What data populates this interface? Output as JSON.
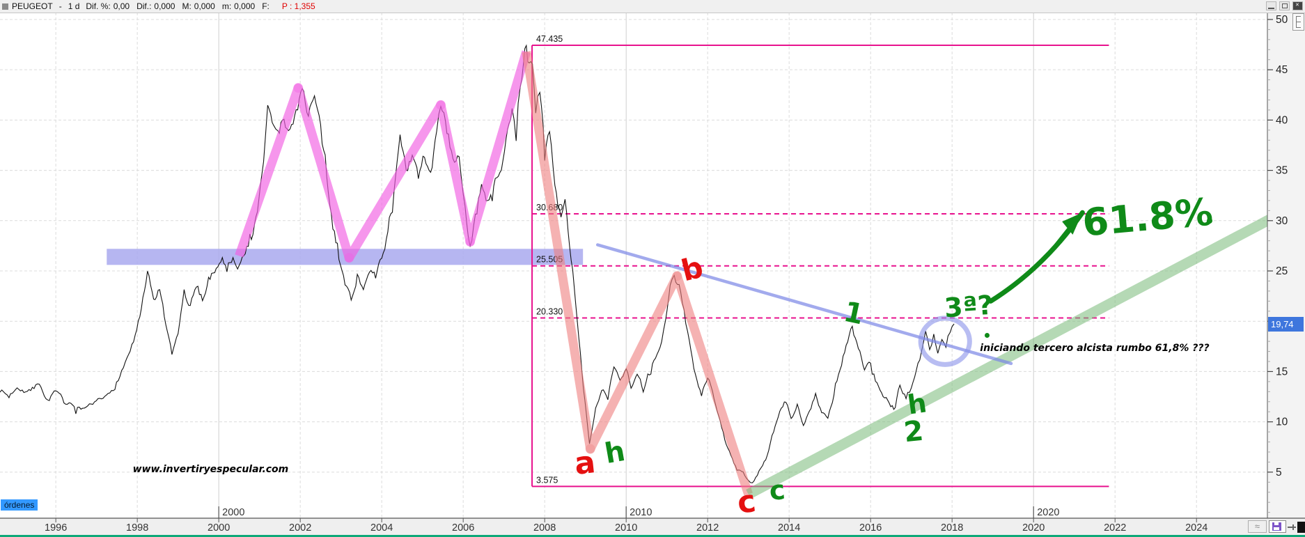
{
  "header": {
    "symbol": "PEUGEOT",
    "separator": "-",
    "timeframe": "1 d",
    "metrics": [
      {
        "label": "Dif. %:",
        "value": "0,00"
      },
      {
        "label": "Dif.:",
        "value": "0,000"
      },
      {
        "label": "M:",
        "value": "0,000"
      },
      {
        "label": "m:",
        "value": "0,000"
      },
      {
        "label": "F:",
        "value": ""
      }
    ],
    "last_price": "P : 1,355"
  },
  "bottom": {
    "orders_tab": "órdenes"
  },
  "chart_data": {
    "type": "line",
    "symbol": "PEUGEOT",
    "timeframe": "1 d",
    "x_axis": {
      "range": [
        1994.63,
        2025.74
      ],
      "tick_years": [
        1996,
        1998,
        2000,
        2002,
        2004,
        2006,
        2008,
        2010,
        2012,
        2014,
        2016,
        2018,
        2020,
        2022,
        2024
      ],
      "tick_labels": [
        "1996",
        "1998",
        "2000",
        "2002",
        "2004",
        "2006",
        "2008",
        "2010",
        "2012",
        "2014",
        "2016",
        "2018",
        "2020",
        "2022",
        "2024"
      ],
      "decade_marks": [
        {
          "year": 2000,
          "label": "2000"
        },
        {
          "year": 2010,
          "label": "2010"
        },
        {
          "year": 2020,
          "label": "2020"
        }
      ]
    },
    "y_axis": {
      "range": [
        0.42,
        50.69
      ],
      "major_step": 5,
      "minor_step": 1,
      "labels": [
        {
          "value": 50,
          "label": "50"
        },
        {
          "value": 45,
          "label": "45"
        },
        {
          "value": 40,
          "label": "40"
        },
        {
          "value": 35,
          "label": "35"
        },
        {
          "value": 30,
          "label": "30"
        },
        {
          "value": 25,
          "label": "25"
        },
        {
          "value": 15,
          "label": "15"
        },
        {
          "value": 10,
          "label": "10"
        },
        {
          "value": 5,
          "label": "5"
        }
      ],
      "last_price_value": 19.74,
      "last_price_label": "19,74"
    },
    "levels": [
      {
        "value": 47.435,
        "label": "47.435",
        "dashed": false
      },
      {
        "value": 30.68,
        "label": "30.680",
        "dashed": true
      },
      {
        "value": 25.505,
        "label": "25.505",
        "dashed": true
      },
      {
        "value": 20.33,
        "label": "20.330",
        "dashed": true
      },
      {
        "value": 3.575,
        "label": "3.575",
        "dashed": false
      }
    ],
    "levels_box": {
      "from_year": 2007.69,
      "to_year": 2021.85
    },
    "support_band": {
      "from_year": 1997.25,
      "to_year": 2008.94,
      "price_low": 25.6,
      "price_high": 27.2
    },
    "pink_wave": [
      [
        2000.5,
        26.5
      ],
      [
        2001.95,
        43.2
      ],
      [
        2003.2,
        26.3
      ],
      [
        2005.45,
        41.5
      ],
      [
        2006.17,
        27.9
      ],
      [
        2007.55,
        46.8
      ]
    ],
    "crash_wave": [
      [
        2007.55,
        46.8
      ],
      [
        2009.12,
        7.3
      ],
      [
        2011.25,
        24.5
      ],
      [
        2013.0,
        2.8
      ]
    ],
    "green_channel": [
      [
        2013.0,
        2.8
      ],
      [
        2026.3,
        31.2
      ]
    ],
    "descending_trendline": [
      [
        2009.3,
        27.6
      ],
      [
        2019.45,
        15.8
      ]
    ],
    "highlight_circle": {
      "year": 2017.83,
      "price": 18.0,
      "rx_years": 0.6,
      "ry_price": 2.3
    },
    "arrow": {
      "from": {
        "year": 2018.95,
        "price": 22.0
      },
      "to": {
        "year": 2021.2,
        "price": 30.8
      }
    },
    "annotations": [
      {
        "id": "wave-a",
        "text": "a",
        "color": "#e51010",
        "year": 2008.99,
        "price": 5.9,
        "size": 44,
        "rot": -6,
        "italic": false
      },
      {
        "id": "wave-h1",
        "text": "h",
        "color": "#0f8a18",
        "year": 2009.73,
        "price": 6.9,
        "size": 40,
        "rot": -10,
        "italic": false
      },
      {
        "id": "wave-b",
        "text": "b",
        "color": "#e51010",
        "year": 2011.62,
        "price": 25.2,
        "size": 42,
        "rot": -14,
        "italic": false
      },
      {
        "id": "wave-c-red",
        "text": "c",
        "color": "#e51010",
        "year": 2012.95,
        "price": 2.0,
        "size": 44,
        "rot": -8,
        "italic": false
      },
      {
        "id": "wave-c-green",
        "text": "c",
        "color": "#0f8a18",
        "year": 2013.7,
        "price": 3.2,
        "size": 38,
        "rot": -6,
        "italic": false
      },
      {
        "id": "wave-1",
        "text": "1",
        "color": "#0f8a18",
        "year": 2015.58,
        "price": 20.8,
        "size": 40,
        "rot": 12,
        "italic": false
      },
      {
        "id": "wave-h2",
        "text": "h",
        "color": "#0f8a18",
        "year": 2017.15,
        "price": 11.8,
        "size": 38,
        "rot": -8,
        "italic": false
      },
      {
        "id": "wave-2",
        "text": "2",
        "color": "#0f8a18",
        "year": 2017.05,
        "price": 9.0,
        "size": 40,
        "rot": -6,
        "italic": false
      },
      {
        "id": "wave-3",
        "text": "3ª?",
        "color": "#0f8a18",
        "year": 2018.4,
        "price": 21.5,
        "size": 38,
        "rot": -4,
        "italic": false
      },
      {
        "id": "fib-target",
        "text": "61.8%",
        "color": "#0f8a18",
        "year": 2022.8,
        "price": 30.3,
        "size": 54,
        "rot": -5,
        "italic": false
      },
      {
        "id": "watermark",
        "text": "www.invertiryespecular.com",
        "color": "#000000",
        "year": 1999.8,
        "price": 5.3,
        "size": 14,
        "rot": 0,
        "italic": true
      },
      {
        "id": "note",
        "text": "iniciando tercero alcista rumbo 61,8% ???",
        "color": "#000000",
        "year": 2021.5,
        "price": 17.3,
        "size": 14,
        "rot": 0,
        "italic": true
      }
    ],
    "series": {
      "name": "PEUGEOT close",
      "points": [
        [
          1994.63,
          13.2
        ],
        [
          1994.85,
          12.5
        ],
        [
          1995.05,
          13.6
        ],
        [
          1995.3,
          13.0
        ],
        [
          1995.55,
          13.8
        ],
        [
          1995.8,
          12.2
        ],
        [
          1996.0,
          12.9
        ],
        [
          1996.2,
          12.0
        ],
        [
          1996.45,
          11.4
        ],
        [
          1996.7,
          11.0
        ],
        [
          1996.95,
          11.8
        ],
        [
          1997.2,
          12.3
        ],
        [
          1997.45,
          13.6
        ],
        [
          1997.7,
          15.8
        ],
        [
          1997.95,
          18.5
        ],
        [
          1998.1,
          21.0
        ],
        [
          1998.25,
          24.6
        ],
        [
          1998.4,
          22.0
        ],
        [
          1998.55,
          23.2
        ],
        [
          1998.7,
          19.5
        ],
        [
          1998.85,
          16.4
        ],
        [
          1999.0,
          18.8
        ],
        [
          1999.15,
          22.8
        ],
        [
          1999.3,
          21.4
        ],
        [
          1999.45,
          23.4
        ],
        [
          1999.6,
          22.3
        ],
        [
          1999.75,
          24.0
        ],
        [
          1999.9,
          25.2
        ],
        [
          2000.05,
          26.4
        ],
        [
          2000.2,
          25.2
        ],
        [
          2000.35,
          26.6
        ],
        [
          2000.5,
          25.4
        ],
        [
          2000.65,
          27.2
        ],
        [
          2000.8,
          28.5
        ],
        [
          2000.95,
          30.5
        ],
        [
          2001.1,
          36.0
        ],
        [
          2001.2,
          41.3
        ],
        [
          2001.35,
          39.0
        ],
        [
          2001.45,
          38.6
        ],
        [
          2001.6,
          40.2
        ],
        [
          2001.75,
          38.8
        ],
        [
          2001.9,
          41.0
        ],
        [
          2002.05,
          43.4
        ],
        [
          2002.2,
          40.8
        ],
        [
          2002.35,
          42.2
        ],
        [
          2002.5,
          39.0
        ],
        [
          2002.65,
          34.0
        ],
        [
          2002.8,
          29.5
        ],
        [
          2002.95,
          26.5
        ],
        [
          2003.1,
          23.6
        ],
        [
          2003.25,
          22.3
        ],
        [
          2003.4,
          24.6
        ],
        [
          2003.55,
          23.2
        ],
        [
          2003.7,
          25.4
        ],
        [
          2003.85,
          24.2
        ],
        [
          2004.0,
          26.2
        ],
        [
          2004.15,
          29.0
        ],
        [
          2004.3,
          33.0
        ],
        [
          2004.45,
          37.8
        ],
        [
          2004.6,
          34.6
        ],
        [
          2004.75,
          36.2
        ],
        [
          2004.9,
          34.2
        ],
        [
          2005.05,
          36.4
        ],
        [
          2005.2,
          34.8
        ],
        [
          2005.35,
          38.5
        ],
        [
          2005.45,
          41.5
        ],
        [
          2005.6,
          38.8
        ],
        [
          2005.75,
          36.4
        ],
        [
          2005.9,
          36.0
        ],
        [
          2006.0,
          32.8
        ],
        [
          2006.17,
          27.6
        ],
        [
          2006.3,
          30.2
        ],
        [
          2006.45,
          33.4
        ],
        [
          2006.6,
          31.6
        ],
        [
          2006.75,
          33.2
        ],
        [
          2006.9,
          34.8
        ],
        [
          2007.05,
          37.5
        ],
        [
          2007.2,
          40.5
        ],
        [
          2007.3,
          39.2
        ],
        [
          2007.4,
          43.5
        ],
        [
          2007.55,
          47.4
        ],
        [
          2007.62,
          44.2
        ],
        [
          2007.7,
          45.8
        ],
        [
          2007.78,
          41.5
        ],
        [
          2007.88,
          43.2
        ],
        [
          2008.0,
          37.0
        ],
        [
          2008.12,
          38.6
        ],
        [
          2008.25,
          34.0
        ],
        [
          2008.4,
          30.0
        ],
        [
          2008.5,
          31.6
        ],
        [
          2008.65,
          26.5
        ],
        [
          2008.8,
          20.5
        ],
        [
          2008.95,
          13.5
        ],
        [
          2009.1,
          7.6
        ],
        [
          2009.25,
          11.0
        ],
        [
          2009.4,
          13.2
        ],
        [
          2009.55,
          12.4
        ],
        [
          2009.7,
          15.8
        ],
        [
          2009.85,
          14.2
        ],
        [
          2010.0,
          15.4
        ],
        [
          2010.12,
          13.6
        ],
        [
          2010.27,
          14.9
        ],
        [
          2010.42,
          13.2
        ],
        [
          2010.57,
          14.6
        ],
        [
          2010.72,
          16.2
        ],
        [
          2010.87,
          17.6
        ],
        [
          2010.97,
          19.8
        ],
        [
          2011.08,
          23.5
        ],
        [
          2011.18,
          24.8
        ],
        [
          2011.3,
          23.4
        ],
        [
          2011.42,
          20.8
        ],
        [
          2011.55,
          17.8
        ],
        [
          2011.7,
          14.8
        ],
        [
          2011.85,
          12.8
        ],
        [
          2012.0,
          14.6
        ],
        [
          2012.12,
          13.0
        ],
        [
          2012.27,
          10.4
        ],
        [
          2012.42,
          8.3
        ],
        [
          2012.57,
          6.6
        ],
        [
          2012.72,
          5.2
        ],
        [
          2012.87,
          4.9
        ],
        [
          2013.0,
          4.2
        ],
        [
          2013.1,
          3.9
        ],
        [
          2013.22,
          4.8
        ],
        [
          2013.35,
          5.6
        ],
        [
          2013.5,
          7.0
        ],
        [
          2013.62,
          9.0
        ],
        [
          2013.77,
          10.9
        ],
        [
          2013.92,
          12.0
        ],
        [
          2014.05,
          10.3
        ],
        [
          2014.2,
          11.6
        ],
        [
          2014.35,
          9.9
        ],
        [
          2014.5,
          11.3
        ],
        [
          2014.65,
          12.7
        ],
        [
          2014.8,
          11.1
        ],
        [
          2014.95,
          10.2
        ],
        [
          2015.1,
          12.6
        ],
        [
          2015.25,
          15.2
        ],
        [
          2015.4,
          17.6
        ],
        [
          2015.55,
          19.3
        ],
        [
          2015.7,
          17.1
        ],
        [
          2015.85,
          15.3
        ],
        [
          2016.0,
          16.1
        ],
        [
          2016.12,
          14.3
        ],
        [
          2016.27,
          13.1
        ],
        [
          2016.42,
          12.1
        ],
        [
          2016.57,
          11.2
        ],
        [
          2016.72,
          13.7
        ],
        [
          2016.87,
          12.5
        ],
        [
          2017.0,
          13.3
        ],
        [
          2017.12,
          15.2
        ],
        [
          2017.25,
          17.0
        ],
        [
          2017.35,
          18.9
        ],
        [
          2017.45,
          17.3
        ],
        [
          2017.55,
          18.6
        ],
        [
          2017.65,
          17.0
        ],
        [
          2017.75,
          18.1
        ],
        [
          2017.85,
          17.6
        ],
        [
          2017.95,
          18.8
        ],
        [
          2018.05,
          19.74
        ]
      ]
    },
    "colors": {
      "price_line": "#111111",
      "magenta_levels": "#e8128e",
      "support_band": "#a9a9ef",
      "pink_wave": "#f25fe2",
      "crash_wave": "#ee7e7e",
      "green_channel": "#79b979",
      "trendline": "#7b86e6",
      "circle": "#8891ea",
      "marker_green": "#0f8a18",
      "marker_red": "#e51010",
      "badge": "#3e76dd",
      "bottom_line": "#0da878"
    }
  }
}
